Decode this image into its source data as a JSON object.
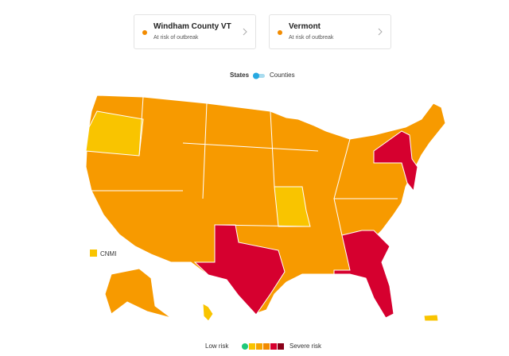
{
  "cards": [
    {
      "title": "Windham County VT",
      "subtitle": "At risk of outbreak"
    },
    {
      "title": "Vermont",
      "subtitle": "At risk of outbreak"
    }
  ],
  "toggle": {
    "left": "States",
    "right": "Counties"
  },
  "map_legend": {
    "label": "CNMI",
    "color": "#f9c400"
  },
  "risk_scale": {
    "low": "Low risk",
    "high": "Severe risk",
    "colors": [
      "#1fc97a",
      "#f9c400",
      "#f7a500",
      "#f28b00",
      "#d6002f",
      "#8a0018"
    ]
  }
}
